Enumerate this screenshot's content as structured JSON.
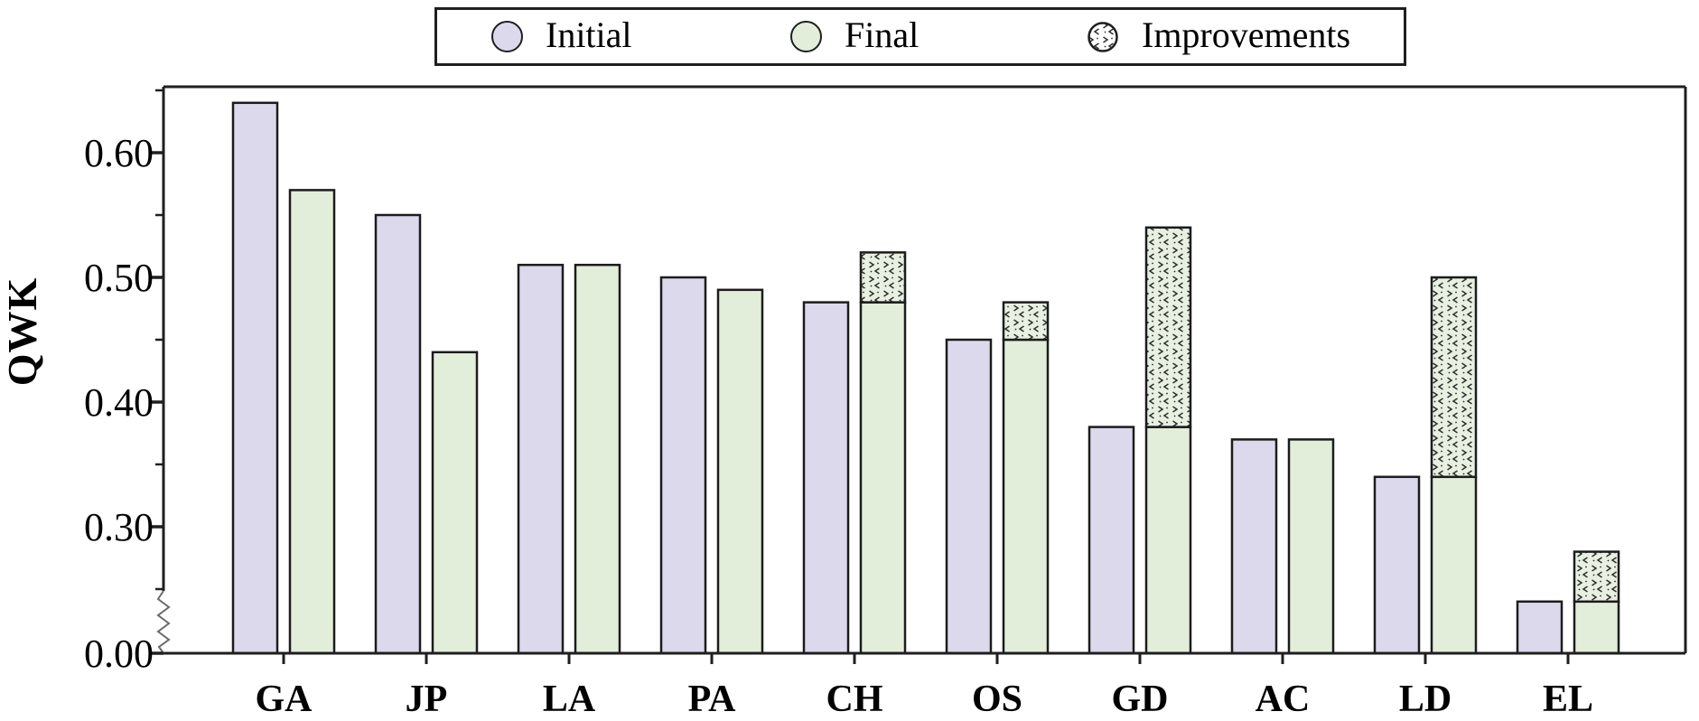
{
  "legend": {
    "items": [
      {
        "label": "Initial",
        "marker": "circle",
        "color": "#dcd9ec"
      },
      {
        "label": "Final",
        "marker": "circle",
        "color": "#e2eeda"
      },
      {
        "label": "Improvements",
        "marker": "hatched-circle",
        "color": "#ffffff"
      }
    ]
  },
  "y_axis": {
    "label": "QWK",
    "major_tick_labels": [
      "0.60",
      "0.50",
      "0.40",
      "0.30",
      "0.00"
    ],
    "major_tick_values": [
      0.6,
      0.5,
      0.4,
      0.3,
      0.0
    ],
    "minor_tick_values": [
      0.65,
      0.55,
      0.45,
      0.35,
      0.25
    ],
    "axis_break_between": [
      0.0,
      0.25
    ]
  },
  "x_axis": {
    "categories": [
      "GA",
      "JP",
      "LA",
      "PA",
      "CH",
      "OS",
      "GD",
      "AC",
      "LD",
      "EL"
    ]
  },
  "chart_data": {
    "type": "bar",
    "title": "",
    "xlabel": "",
    "ylabel": "QWK",
    "categories": [
      "GA",
      "JP",
      "LA",
      "PA",
      "CH",
      "OS",
      "GD",
      "AC",
      "LD",
      "EL"
    ],
    "series": [
      {
        "name": "Initial",
        "values": [
          0.64,
          0.55,
          0.51,
          0.5,
          0.48,
          0.45,
          0.38,
          0.37,
          0.34,
          0.24
        ]
      },
      {
        "name": "Final",
        "values": [
          0.57,
          0.44,
          0.51,
          0.49,
          0.52,
          0.48,
          0.54,
          0.37,
          0.5,
          0.28
        ]
      },
      {
        "name": "Improvements",
        "values": [
          0.0,
          0.0,
          0.0,
          0.0,
          0.04,
          0.03,
          0.16,
          0.0,
          0.16,
          0.04
        ]
      }
    ],
    "ylim": [
      0.0,
      0.655
    ],
    "y_break": [
      0.0,
      0.25
    ],
    "grid": false,
    "legend_position": "top-center",
    "notes": "Paired bars per category: Initial (lavender) and Final (green). Where Final exceeds Initial, the gain is drawn as a hatched Improvements segment stacked on top of the green bar. Y axis has a break between 0.00 and 0.25."
  },
  "colors": {
    "initial_fill": "#dcd9ec",
    "final_fill": "#e2eeda",
    "improvement_fill": "#e8f1e1",
    "bar_border": "#1c1c1c",
    "hatch_mark": "#2e2e2e",
    "spine": "#1f1f1f",
    "break_zigzag": "#6a6a6a",
    "text": "#000000",
    "background": "#ffffff"
  }
}
